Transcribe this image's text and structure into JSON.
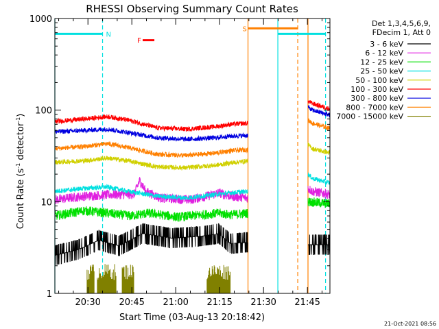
{
  "chart_data": {
    "type": "line",
    "title": "RHESSI Observing Summary Count Rates",
    "xlabel": "Start Time (03-Aug-13 20:18:42)",
    "ylabel_main": "Count Rate (s",
    "ylabel_sup1": "-1",
    "ylabel_mid": " detector",
    "ylabel_sup2": "-1",
    "ylabel_end": ")",
    "y_scale": "log",
    "ylim": [
      1,
      1000
    ],
    "xlim_minutes": [
      0,
      94
    ],
    "x_ticks": [
      {
        "label": "20:30",
        "minute": 11.3
      },
      {
        "label": "20:45",
        "minute": 26.3
      },
      {
        "label": "21:00",
        "minute": 41.3
      },
      {
        "label": "21:15",
        "minute": 56.3
      },
      {
        "label": "21:30",
        "minute": 71.3
      },
      {
        "label": "21:45",
        "minute": 86.3
      }
    ],
    "y_ticks": [
      {
        "label": "1",
        "value": 1
      },
      {
        "label": "10",
        "value": 10
      },
      {
        "label": "100",
        "value": 100
      },
      {
        "label": "1000",
        "value": 1000
      }
    ],
    "gap_minutes": [
      66.0,
      86.5
    ],
    "legend": {
      "header": [
        "Det 1,3,4,5,6,9,",
        "FDecim 1, Att 0"
      ],
      "position": "right"
    },
    "series": [
      {
        "name": "3 - 6 keV",
        "color": "#000000",
        "seg1": [
          [
            0,
            2.6
          ],
          [
            8,
            3.0
          ],
          [
            15,
            3.8
          ],
          [
            22,
            3.3
          ],
          [
            30,
            4.5
          ],
          [
            40,
            4.0
          ],
          [
            50,
            4.2
          ],
          [
            56,
            4.5
          ],
          [
            60,
            3.5
          ],
          [
            66,
            3.6
          ]
        ],
        "seg2": [
          [
            86.5,
            3.4
          ],
          [
            94,
            3.4
          ]
        ]
      },
      {
        "name": "6 - 12 keV",
        "color": "#e020e0",
        "seg1": [
          [
            0,
            10.5
          ],
          [
            10,
            11.5
          ],
          [
            20,
            12.0
          ],
          [
            27,
            12.0
          ],
          [
            29,
            17.0
          ],
          [
            31,
            13.0
          ],
          [
            36,
            11.0
          ],
          [
            46,
            10.5
          ],
          [
            52,
            11.5
          ],
          [
            56,
            12.5
          ],
          [
            60,
            11.5
          ],
          [
            66,
            11.0
          ]
        ],
        "seg2": [
          [
            86.5,
            14.0
          ],
          [
            88,
            13.0
          ],
          [
            94,
            12.0
          ]
        ]
      },
      {
        "name": "12 - 25 keV",
        "color": "#00e000",
        "seg1": [
          [
            0,
            7.0
          ],
          [
            10,
            8.0
          ],
          [
            18,
            7.5
          ],
          [
            26,
            7.0
          ],
          [
            32,
            7.5
          ],
          [
            42,
            6.8
          ],
          [
            50,
            7.2
          ],
          [
            56,
            7.5
          ],
          [
            60,
            7.2
          ],
          [
            66,
            7.5
          ]
        ],
        "seg2": [
          [
            86.5,
            10.0
          ],
          [
            94,
            9.5
          ]
        ]
      },
      {
        "name": "25 - 50 keV",
        "color": "#00e0e0",
        "seg1": [
          [
            0,
            13.0
          ],
          [
            10,
            14.0
          ],
          [
            18,
            14.5
          ],
          [
            25,
            13.0
          ],
          [
            35,
            11.5
          ],
          [
            45,
            11.0
          ],
          [
            55,
            12.0
          ],
          [
            60,
            12.5
          ],
          [
            66,
            13.0
          ]
        ],
        "seg2": [
          [
            86.5,
            20.0
          ],
          [
            88,
            18.0
          ],
          [
            94,
            16.0
          ]
        ]
      },
      {
        "name": "50 - 100 keV",
        "color": "#d0d000",
        "seg1": [
          [
            0,
            27.0
          ],
          [
            10,
            28.0
          ],
          [
            18,
            30.0
          ],
          [
            25,
            28.0
          ],
          [
            35,
            24.0
          ],
          [
            45,
            23.5
          ],
          [
            55,
            25.0
          ],
          [
            60,
            26.5
          ],
          [
            66,
            28.0
          ]
        ],
        "seg2": [
          [
            86.5,
            42.0
          ],
          [
            88,
            38.0
          ],
          [
            94,
            34.0
          ]
        ]
      },
      {
        "name": "100 - 300 keV",
        "color": "#ff0000",
        "seg1": [
          [
            0,
            75.0
          ],
          [
            10,
            80.0
          ],
          [
            18,
            85.0
          ],
          [
            25,
            78.0
          ],
          [
            35,
            64.0
          ],
          [
            45,
            62.0
          ],
          [
            55,
            66.0
          ],
          [
            60,
            70.0
          ],
          [
            66,
            72.0
          ]
        ],
        "seg2": [
          [
            86.5,
            125.0
          ],
          [
            88,
            118.0
          ],
          [
            94,
            103.0
          ]
        ]
      },
      {
        "name": "300 - 800 keV",
        "color": "#0000e0",
        "seg1": [
          [
            0,
            58.0
          ],
          [
            10,
            60.0
          ],
          [
            18,
            62.0
          ],
          [
            25,
            57.0
          ],
          [
            35,
            50.0
          ],
          [
            45,
            48.0
          ],
          [
            55,
            50.0
          ],
          [
            60,
            52.0
          ],
          [
            66,
            53.0
          ]
        ],
        "seg2": [
          [
            86.5,
            108.0
          ],
          [
            88,
            100.0
          ],
          [
            94,
            88.0
          ]
        ]
      },
      {
        "name": "800 - 7000 keV",
        "color": "#ff8000",
        "seg1": [
          [
            0,
            38.0
          ],
          [
            10,
            40.0
          ],
          [
            18,
            43.0
          ],
          [
            25,
            39.0
          ],
          [
            35,
            33.0
          ],
          [
            45,
            32.0
          ],
          [
            55,
            34.0
          ],
          [
            60,
            36.0
          ],
          [
            66,
            37.0
          ]
        ],
        "seg2": [
          [
            86.5,
            78.0
          ],
          [
            88,
            72.0
          ],
          [
            94,
            63.0
          ]
        ]
      },
      {
        "name": "7000 - 15000 keV",
        "color": "#808000",
        "seg1": [],
        "seg2": []
      }
    ],
    "spikes_7000": [
      {
        "from": 11,
        "to": 13.5
      },
      {
        "from": 14.5,
        "to": 21
      },
      {
        "from": 23,
        "to": 27
      },
      {
        "from": 52,
        "to": 60
      }
    ],
    "flags": [
      {
        "label": "N",
        "color": "#00e0e0",
        "y_value": 680,
        "from": 0,
        "to": 16.3,
        "marker": 16.3
      },
      {
        "label": "S",
        "color": "#ff8000",
        "y_value": 780,
        "from": 66.0,
        "to": 83.0,
        "marker": 83.0
      },
      {
        "label": "",
        "color": "#00e0e0",
        "y_value": 680,
        "from": 76.2,
        "to": 92.5,
        "marker": 92.5
      },
      {
        "label": "F",
        "color": "#ff0000",
        "y_value": 580,
        "from": 30.0,
        "to": 34.0,
        "marker": null
      }
    ],
    "vlines": [
      {
        "minute": 0.0,
        "color": "#00e0e0",
        "dashed": false
      },
      {
        "minute": 16.3,
        "color": "#00e0e0",
        "dashed": true
      },
      {
        "minute": 66.0,
        "color": "#ff8000",
        "dashed": false
      },
      {
        "minute": 76.2,
        "color": "#00e0e0",
        "dashed": false
      },
      {
        "minute": 83.0,
        "color": "#ff8000",
        "dashed": true
      },
      {
        "minute": 86.5,
        "color": "#ff8000",
        "dashed": false
      },
      {
        "minute": 92.5,
        "color": "#00e0e0",
        "dashed": true
      }
    ]
  },
  "footer_date": "21-Oct-2021 08:56"
}
